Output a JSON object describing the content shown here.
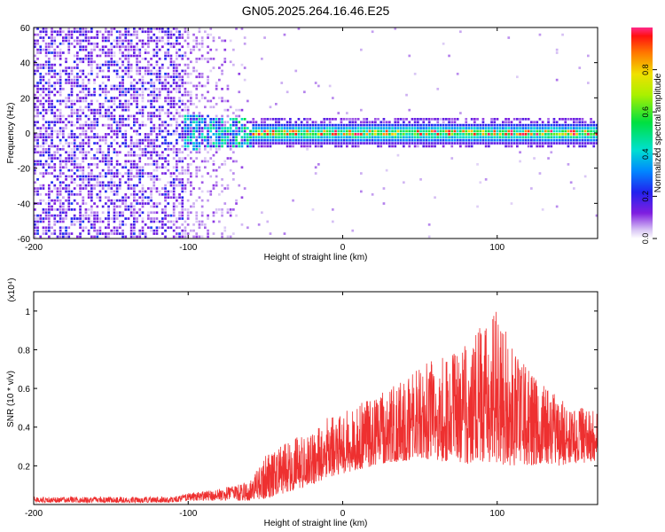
{
  "title": "GN05.2025.264.16.46.E25",
  "chart_data": [
    {
      "type": "heatmap",
      "name": "spectrogram",
      "xlabel": "Height of straight line (km)",
      "ylabel": "Frequency (Hz)",
      "xlim": [
        -200,
        165
      ],
      "ylim": [
        -60,
        60
      ],
      "xticks": [
        -200,
        -100,
        0,
        100
      ],
      "yticks": [
        -60,
        -40,
        -20,
        0,
        20,
        40,
        60
      ],
      "colorbar": {
        "label": "Normalized spectral amplitude",
        "range": [
          0,
          1
        ],
        "ticks": [
          "0.0",
          "0.2",
          "0.4",
          "0.6",
          "0.8"
        ]
      },
      "regions": [
        {
          "x_range": [
            -200,
            -103
          ],
          "description": "broadband noise",
          "amplitude": 0.15
        },
        {
          "x_range": [
            -103,
            -60
          ],
          "description": "noise fading, band onset near 0 Hz",
          "amplitude": 0.35
        },
        {
          "x_range": [
            -60,
            165
          ],
          "description": "narrow band centered ~0 Hz",
          "band_halfwidth_hz": 6,
          "peak_amplitude": 1.0
        }
      ]
    },
    {
      "type": "line",
      "name": "snr",
      "xlabel": "Height of straight line (km)",
      "ylabel": "SNR (10 * v/v)",
      "scale_label": "(x10⁴)",
      "xlim": [
        -200,
        165
      ],
      "ylim": [
        0,
        1.1
      ],
      "xticks": [
        -200,
        -100,
        0,
        100
      ],
      "yticks": [
        "0.2",
        "0.4",
        "0.6",
        "0.8",
        "1"
      ],
      "series": [
        {
          "name": "SNR",
          "color": "#ee3030",
          "x": [
            -200,
            -150,
            -110,
            -100,
            -80,
            -60,
            -50,
            -40,
            -30,
            -20,
            -10,
            0,
            10,
            20,
            30,
            40,
            50,
            60,
            70,
            80,
            90,
            100,
            110,
            120,
            130,
            140,
            150,
            165
          ],
          "y_low": [
            0.01,
            0.01,
            0.01,
            0.02,
            0.02,
            0.02,
            0.03,
            0.05,
            0.08,
            0.1,
            0.14,
            0.16,
            0.18,
            0.2,
            0.22,
            0.22,
            0.24,
            0.22,
            0.22,
            0.2,
            0.22,
            0.21,
            0.2,
            0.2,
            0.21,
            0.2,
            0.21,
            0.22
          ],
          "y_high": [
            0.04,
            0.04,
            0.04,
            0.06,
            0.08,
            0.12,
            0.25,
            0.3,
            0.35,
            0.38,
            0.45,
            0.48,
            0.52,
            0.55,
            0.6,
            0.65,
            0.72,
            0.75,
            0.78,
            0.85,
            0.95,
            1.02,
            0.8,
            0.7,
            0.62,
            0.55,
            0.5,
            0.5
          ]
        }
      ]
    }
  ]
}
